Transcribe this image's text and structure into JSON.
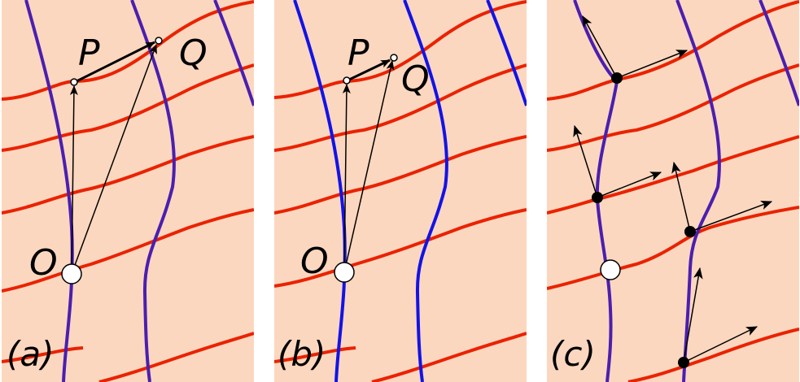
{
  "colors": {
    "background": "#fcd7bf",
    "red_curve": "#ea2200",
    "blue_curve_a": "#4a1fb0",
    "blue_curve_b": "#1313e6",
    "arrow": "#000000"
  },
  "panels": [
    {
      "label": "(a)",
      "points": {
        "P": "P",
        "Q": "Q",
        "O": "O"
      }
    },
    {
      "label": "(b)",
      "points": {
        "P": "P",
        "Q": "Q",
        "O": "O"
      }
    },
    {
      "label": "(c)",
      "points": {}
    }
  ]
}
